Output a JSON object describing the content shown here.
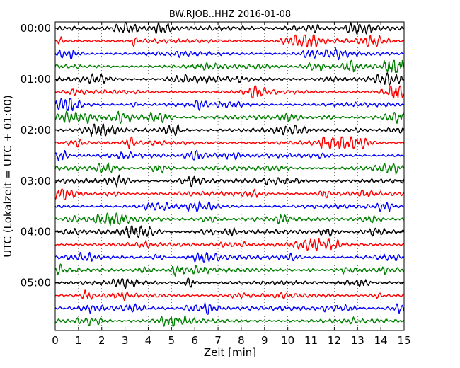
{
  "chart_data": {
    "type": "line",
    "title": "BW.RJOB..HHZ 2016-01-08",
    "xlabel": "Zeit  [min]",
    "ylabel": "UTC (Lokalzeit = UTC + 01:00)",
    "xlim": [
      0,
      15
    ],
    "xticks": [
      "0",
      "1",
      "2",
      "3",
      "4",
      "5",
      "6",
      "7",
      "8",
      "9",
      "10",
      "11",
      "12",
      "13",
      "14",
      "15"
    ],
    "yticks": [
      {
        "label": "00:00",
        "row": 0
      },
      {
        "label": "01:00",
        "row": 4
      },
      {
        "label": "02:00",
        "row": 8
      },
      {
        "label": "03:00",
        "row": 12
      },
      {
        "label": "04:00",
        "row": 16
      },
      {
        "label": "05:00",
        "row": 20
      }
    ],
    "rows": 24,
    "minutes_per_row": 15,
    "series_colors": [
      "#000000",
      "#ff0000",
      "#0000ff",
      "#008000"
    ],
    "grid": true,
    "legend": "none"
  }
}
